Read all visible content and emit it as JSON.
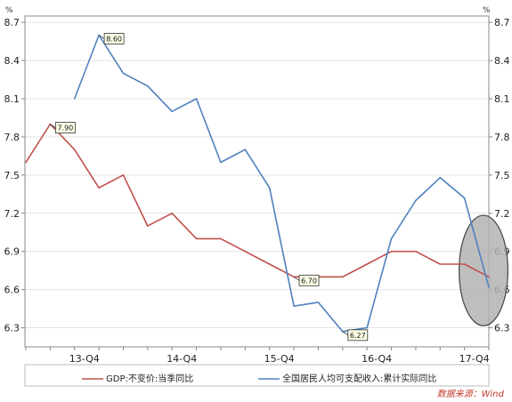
{
  "chart_data": {
    "type": "line",
    "unit_left": "%",
    "unit_right": "%",
    "yticks": [
      6.3,
      6.6,
      6.9,
      7.2,
      7.5,
      7.8,
      8.1,
      8.4,
      8.7
    ],
    "ylim": [
      6.15,
      8.75
    ],
    "xlim": [
      0,
      19
    ],
    "xticks": [
      {
        "label": "13-Q4",
        "x": 2
      },
      {
        "label": "14-Q4",
        "x": 6
      },
      {
        "label": "15-Q4",
        "x": 10
      },
      {
        "label": "16-Q4",
        "x": 14
      },
      {
        "label": "17-Q4",
        "x": 18
      }
    ],
    "series": [
      {
        "name": "GDP:不变价:当季同比",
        "color": "#c0504d",
        "x": [
          0,
          1,
          2,
          3,
          4,
          5,
          6,
          7,
          8,
          9,
          10,
          11,
          12,
          13,
          14,
          15,
          16,
          17,
          18,
          19
        ],
        "values": [
          7.6,
          7.9,
          7.7,
          7.4,
          7.5,
          7.1,
          7.2,
          7.0,
          7.0,
          6.9,
          6.8,
          6.7,
          6.7,
          6.7,
          6.8,
          6.9,
          6.9,
          6.8,
          6.8,
          6.7
        ]
      },
      {
        "name": "全国居民人均可支配收入:累计实际同比",
        "color": "#4f81bd",
        "x": [
          2,
          3,
          4,
          5,
          6,
          7,
          8,
          9,
          10,
          11,
          12,
          13,
          14,
          15,
          16,
          17,
          18,
          19
        ],
        "values": [
          8.1,
          8.6,
          8.3,
          8.2,
          8.0,
          8.1,
          7.6,
          7.7,
          7.4,
          6.47,
          6.5,
          6.27,
          6.3,
          7.0,
          7.3,
          7.48,
          7.32,
          6.62
        ]
      }
    ],
    "annotations": [
      {
        "label": "7.90",
        "x": 1,
        "y": 7.9
      },
      {
        "label": "8.60",
        "x": 3,
        "y": 8.6
      },
      {
        "label": "6.70",
        "x": 11,
        "y": 6.7
      },
      {
        "label": "6.27",
        "x": 13,
        "y": 6.27
      }
    ],
    "highlight_ellipse": true
  },
  "legend": [
    {
      "label": "GDP:不变价:当季同比",
      "color": "#c0504d"
    },
    {
      "label": "全国居民人均可支配收入:累计实际同比",
      "color": "#4f81bd"
    }
  ],
  "source": "数据来源：Wind"
}
